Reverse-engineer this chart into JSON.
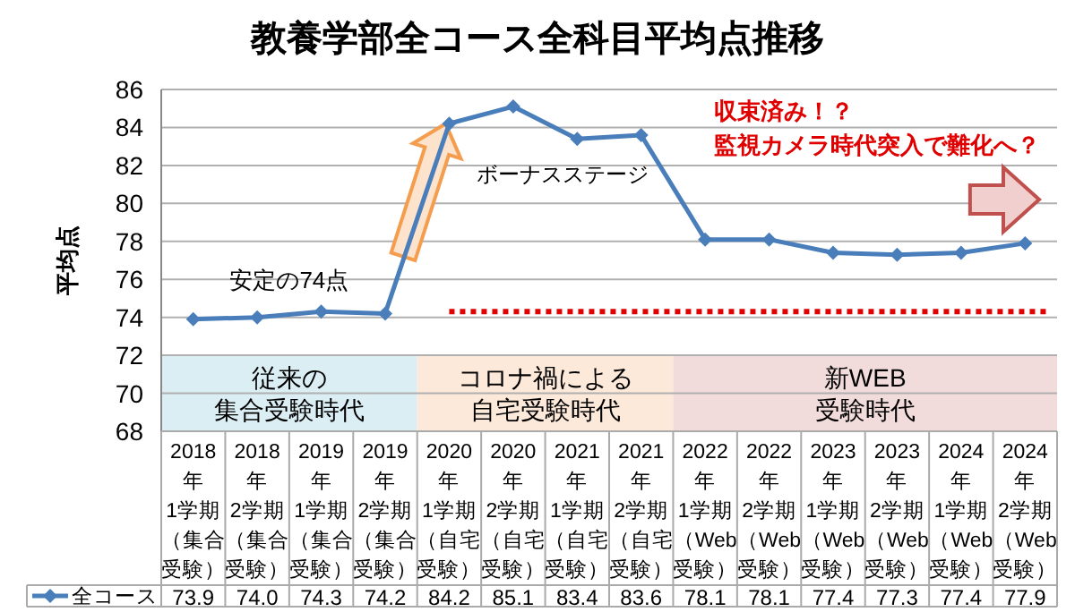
{
  "chart_data": {
    "type": "line",
    "title": "教養学部全コース全科目平均点推移",
    "ylabel": "平均点",
    "categories": [
      "2018年1学期（集合受験）",
      "2018年2学期（集合受験）",
      "2019年1学期（集合受験）",
      "2019年2学期（集合受験）",
      "2020年1学期（自宅受験）",
      "2020年2学期（自宅受験）",
      "2021年1学期（自宅受験）",
      "2021年2学期（自宅受験）",
      "2022年1学期（Web受験）",
      "2022年2学期（Web受験）",
      "2023年1学期（Web受験）",
      "2023年2学期（Web受験）",
      "2024年1学期（Web受験）",
      "2024年2学期（Web受験）"
    ],
    "series": [
      {
        "name": "全コース",
        "color": "#4a7ebb",
        "values": [
          73.9,
          74.0,
          74.3,
          74.2,
          84.2,
          85.1,
          83.4,
          83.6,
          78.1,
          78.1,
          77.4,
          77.3,
          77.4,
          77.9
        ],
        "value_labels": [
          "73.9",
          "74.0",
          "74.3",
          "74.2",
          "84.2",
          "85.1",
          "83.4",
          "83.6",
          "78.1",
          "78.1",
          "77.4",
          "77.3",
          "77.4",
          "77.9"
        ]
      }
    ],
    "ylim": [
      68,
      86
    ],
    "yticks": [
      68,
      70,
      72,
      74,
      76,
      78,
      80,
      82,
      84,
      86
    ],
    "grid": "y",
    "marker": "diamond",
    "line_style": "solid",
    "legend": "bottom",
    "bands": [
      {
        "axis": "x",
        "from": "2018年1学期（集合受験）",
        "to": "2019年2学期（集合受験）",
        "label": "従来の集合受験時代",
        "color": "#dbeef4"
      },
      {
        "axis": "x",
        "from": "2020年1学期（自宅受験）",
        "to": "2021年2学期（自宅受験）",
        "label": "コロナ禍による自宅受験時代",
        "color": "#fde9d9"
      },
      {
        "axis": "x",
        "from": "2022年1学期（Web受験）",
        "to": "2024年2学期（Web受験）",
        "label": "新WEB受験時代",
        "color": "#f2dcdb"
      }
    ],
    "ref_lines": [
      {
        "axis": "y",
        "value": 74.3,
        "color": "#e00000",
        "line_style": "dotted"
      }
    ],
    "annotations": [
      "安定の74点",
      "ボーナスステージ",
      "収束済み！？監視カメラ時代突入で難化へ？"
    ]
  }
}
